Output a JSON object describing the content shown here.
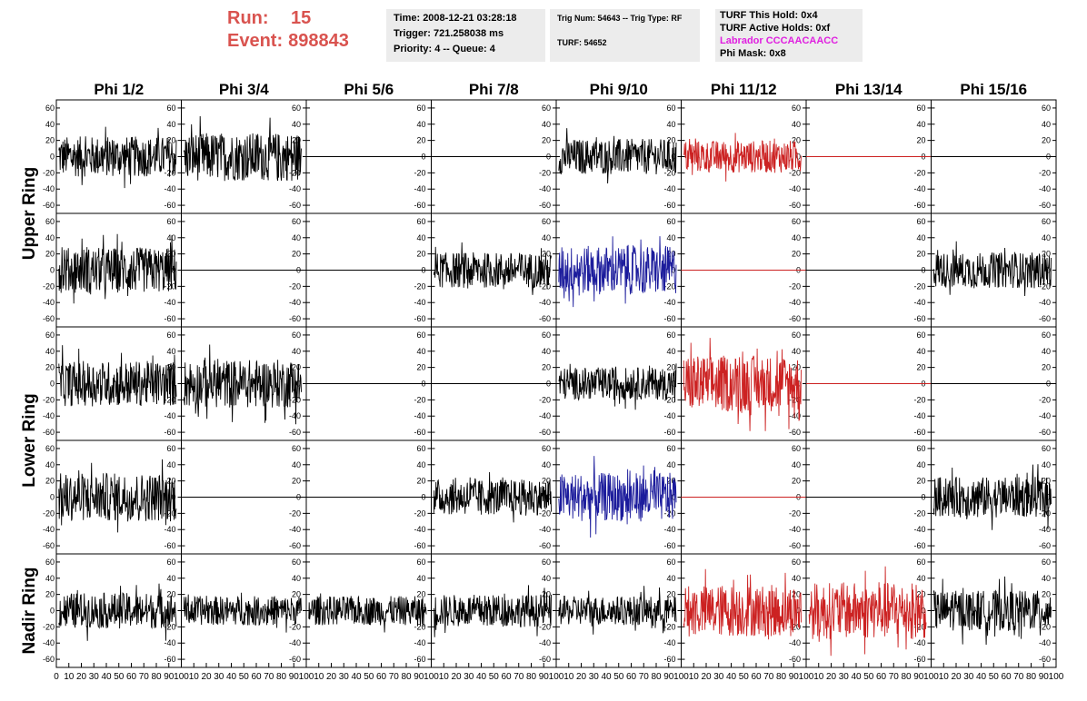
{
  "header": {
    "run_label": "Run:",
    "run_value": "15",
    "event_label": "Event:",
    "event_value": "898843",
    "time": "Time: 2008-12-21 03:28:18",
    "trigger": "Trigger: 721.258038 ms",
    "priority": "Priority: 4 -- Queue: 4",
    "trig_num": "Trig Num: 54643 -- Trig Type: RF",
    "turf": "TURF: 54652",
    "turf_this_hold": "TURF This Hold: 0x4",
    "turf_active_holds": "TURF Active Holds: 0xf",
    "labrador": "Labrador CCCAACAACC",
    "phi_mask": "Phi Mask: 0x8"
  },
  "columns": [
    "Phi 1/2",
    "Phi 3/4",
    "Phi 5/6",
    "Phi 7/8",
    "Phi 9/10",
    "Phi 11/12",
    "Phi 13/14",
    "Phi 15/16"
  ],
  "rings": [
    "Upper Ring",
    "Lower Ring",
    "Nadir Ring"
  ],
  "axis": {
    "y_ticks": [
      "60",
      "40",
      "20",
      "0",
      "-20",
      "-40",
      "-60"
    ],
    "x_tick_labels": [
      "0",
      "10",
      "20",
      "30",
      "40",
      "50",
      "60",
      "70",
      "80",
      "90",
      "100"
    ]
  },
  "colors": {
    "black": "#000000",
    "red": "#cc2222",
    "blue": "#1c1c9c",
    "run_text": "#d9534f",
    "magenta": "#e020e0",
    "panel_bg": "#ececec"
  },
  "chart_data": {
    "type": "line",
    "xlim": [
      0,
      100
    ],
    "ylim": [
      -70,
      70
    ],
    "rows": [
      {
        "cells": [
          {
            "color": "black",
            "amplitude": 25,
            "flat": false
          },
          {
            "color": "black",
            "amplitude": 30,
            "flat": false
          },
          {
            "color": "black",
            "amplitude": 0,
            "flat": true
          },
          {
            "color": "black",
            "amplitude": 0,
            "flat": true
          },
          {
            "color": "black",
            "amplitude": 22,
            "flat": false
          },
          {
            "color": "red",
            "amplitude": 20,
            "flat": false
          },
          {
            "color": "red",
            "amplitude": 0,
            "flat": true
          },
          {
            "color": "black",
            "amplitude": 0,
            "flat": true
          }
        ]
      },
      {
        "cells": [
          {
            "color": "black",
            "amplitude": 28,
            "flat": false
          },
          {
            "color": "black",
            "amplitude": 0,
            "flat": true
          },
          {
            "color": "black",
            "amplitude": 0,
            "flat": true
          },
          {
            "color": "black",
            "amplitude": 22,
            "flat": false
          },
          {
            "color": "blue",
            "amplitude": 30,
            "flat": false
          },
          {
            "color": "red",
            "amplitude": 0,
            "flat": true
          },
          {
            "color": "black",
            "amplitude": 0,
            "flat": true
          },
          {
            "color": "black",
            "amplitude": 22,
            "flat": false
          }
        ]
      },
      {
        "cells": [
          {
            "color": "black",
            "amplitude": 28,
            "flat": false
          },
          {
            "color": "black",
            "amplitude": 30,
            "flat": false
          },
          {
            "color": "black",
            "amplitude": 0,
            "flat": true
          },
          {
            "color": "black",
            "amplitude": 0,
            "flat": true
          },
          {
            "color": "black",
            "amplitude": 20,
            "flat": false
          },
          {
            "color": "red",
            "amplitude": 35,
            "flat": false
          },
          {
            "color": "red",
            "amplitude": 0,
            "flat": true
          },
          {
            "color": "black",
            "amplitude": 0,
            "flat": true
          }
        ]
      },
      {
        "cells": [
          {
            "color": "black",
            "amplitude": 30,
            "flat": false
          },
          {
            "color": "black",
            "amplitude": 0,
            "flat": true
          },
          {
            "color": "black",
            "amplitude": 0,
            "flat": true
          },
          {
            "color": "black",
            "amplitude": 22,
            "flat": false
          },
          {
            "color": "blue",
            "amplitude": 30,
            "flat": false
          },
          {
            "color": "red",
            "amplitude": 0,
            "flat": true
          },
          {
            "color": "black",
            "amplitude": 0,
            "flat": true
          },
          {
            "color": "black",
            "amplitude": 25,
            "flat": false
          }
        ]
      },
      {
        "cells": [
          {
            "color": "black",
            "amplitude": 22,
            "flat": false
          },
          {
            "color": "black",
            "amplitude": 18,
            "flat": false
          },
          {
            "color": "black",
            "amplitude": 18,
            "flat": false
          },
          {
            "color": "black",
            "amplitude": 20,
            "flat": false
          },
          {
            "color": "black",
            "amplitude": 18,
            "flat": false
          },
          {
            "color": "red",
            "amplitude": 32,
            "flat": false
          },
          {
            "color": "red",
            "amplitude": 35,
            "flat": false
          },
          {
            "color": "black",
            "amplitude": 25,
            "flat": false
          }
        ]
      }
    ]
  }
}
